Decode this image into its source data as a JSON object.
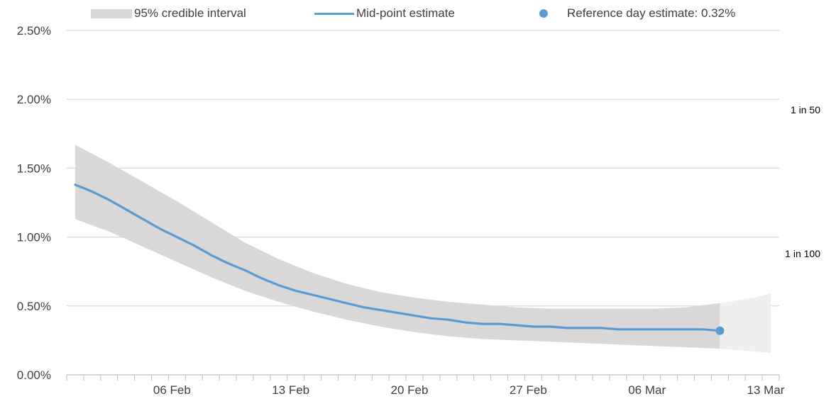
{
  "legend": {
    "band_label": "95% credible interval",
    "line_label": "Mid-point estimate",
    "dot_label": "Reference day estimate: 0.32%"
  },
  "ref_labels": [
    {
      "label": "1 in 50",
      "value": 2.0
    },
    {
      "label": "1 in 100",
      "value": 1.0
    }
  ],
  "colors": {
    "band": "#d9d7d8",
    "band_projection": "#efefef",
    "line": "#5b9bd5",
    "grid": "#d9d9d9",
    "axis": "#bfbfbf"
  },
  "chart_data": {
    "type": "area",
    "y_unit": "%",
    "ylim": [
      0,
      2.5
    ],
    "y_ticks": [
      "0.00%",
      "0.50%",
      "1.00%",
      "1.50%",
      "2.00%",
      "2.50%"
    ],
    "y_tick_values": [
      0,
      0.5,
      1.0,
      1.5,
      2.0,
      2.5
    ],
    "x_range": [
      "2022-01-30",
      "2022-03-13"
    ],
    "x_ticks": [
      {
        "date": "2022-02-06",
        "label": "06 Feb"
      },
      {
        "date": "2022-02-13",
        "label": "13 Feb"
      },
      {
        "date": "2022-02-20",
        "label": "20 Feb"
      },
      {
        "date": "2022-02-27",
        "label": "27 Feb"
      },
      {
        "date": "2022-03-06",
        "label": "06 Mar"
      },
      {
        "date": "2022-03-13",
        "label": "13 Mar"
      }
    ],
    "grid": true,
    "legend_position": "top",
    "series": [
      {
        "name": "Mid-point estimate",
        "type": "line",
        "x": [
          "2022-01-30",
          "2022-01-31",
          "2022-02-01",
          "2022-02-02",
          "2022-02-03",
          "2022-02-04",
          "2022-02-05",
          "2022-02-06",
          "2022-02-07",
          "2022-02-08",
          "2022-02-09",
          "2022-02-10",
          "2022-02-11",
          "2022-02-12",
          "2022-02-13",
          "2022-02-14",
          "2022-02-15",
          "2022-02-16",
          "2022-02-17",
          "2022-02-18",
          "2022-02-19",
          "2022-02-20",
          "2022-02-21",
          "2022-02-22",
          "2022-02-23",
          "2022-02-24",
          "2022-02-25",
          "2022-02-26",
          "2022-02-27",
          "2022-02-28",
          "2022-03-01",
          "2022-03-02",
          "2022-03-03",
          "2022-03-04",
          "2022-03-05",
          "2022-03-06",
          "2022-03-07",
          "2022-03-08",
          "2022-03-09"
        ],
        "y": [
          1.38,
          1.33,
          1.27,
          1.2,
          1.13,
          1.06,
          1.0,
          0.94,
          0.87,
          0.81,
          0.76,
          0.7,
          0.65,
          0.61,
          0.58,
          0.55,
          0.52,
          0.49,
          0.47,
          0.45,
          0.43,
          0.41,
          0.4,
          0.38,
          0.37,
          0.37,
          0.36,
          0.35,
          0.35,
          0.34,
          0.34,
          0.34,
          0.33,
          0.33,
          0.33,
          0.33,
          0.33,
          0.33,
          0.32
        ]
      },
      {
        "name": "95% credible interval",
        "type": "band",
        "x": [
          "2022-01-30",
          "2022-02-01",
          "2022-02-03",
          "2022-02-05",
          "2022-02-07",
          "2022-02-09",
          "2022-02-11",
          "2022-02-13",
          "2022-02-15",
          "2022-02-17",
          "2022-02-19",
          "2022-02-21",
          "2022-02-23",
          "2022-02-25",
          "2022-02-27",
          "2022-03-01",
          "2022-03-03",
          "2022-03-05",
          "2022-03-07",
          "2022-03-09"
        ],
        "lower": [
          1.13,
          1.04,
          0.93,
          0.82,
          0.71,
          0.61,
          0.53,
          0.46,
          0.4,
          0.35,
          0.31,
          0.28,
          0.26,
          0.25,
          0.24,
          0.23,
          0.22,
          0.21,
          0.2,
          0.19
        ],
        "upper": [
          1.67,
          1.54,
          1.4,
          1.26,
          1.11,
          0.96,
          0.84,
          0.74,
          0.66,
          0.6,
          0.56,
          0.53,
          0.51,
          0.49,
          0.48,
          0.48,
          0.48,
          0.48,
          0.49,
          0.52
        ]
      },
      {
        "name": "Projection interval",
        "type": "band",
        "x": [
          "2022-03-09",
          "2022-03-10",
          "2022-03-11",
          "2022-03-12"
        ],
        "lower": [
          0.19,
          0.18,
          0.17,
          0.16
        ],
        "upper": [
          0.52,
          0.54,
          0.56,
          0.59
        ]
      },
      {
        "name": "Reference day estimate",
        "type": "point",
        "x": [
          "2022-03-09"
        ],
        "y": [
          0.32
        ]
      }
    ]
  }
}
